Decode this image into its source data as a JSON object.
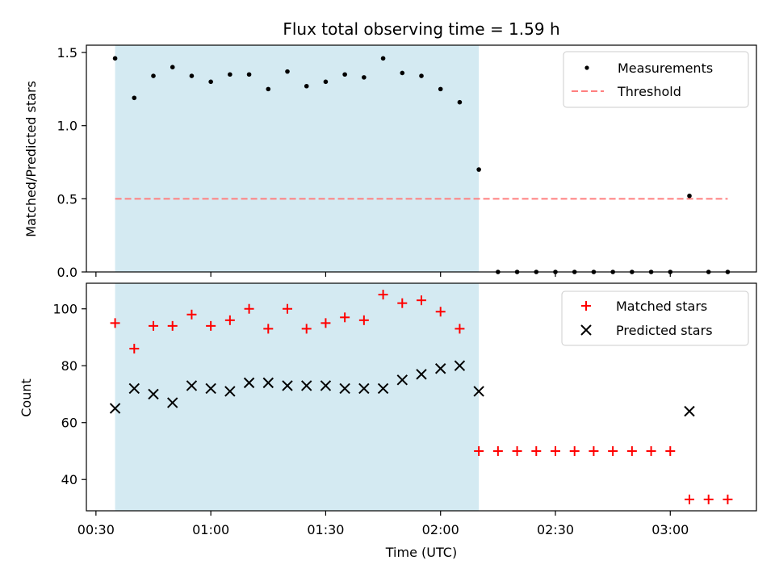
{
  "chart_data": {
    "type": "scatter",
    "title": "Flux total observing time = 1.59 h",
    "xlabel": "Time (UTC)",
    "x_ticks": [
      "00:30",
      "01:00",
      "01:30",
      "02:00",
      "02:30",
      "03:00"
    ],
    "x_tick_minutes": [
      30,
      60,
      90,
      120,
      150,
      180
    ],
    "xlim_minutes": [
      27.5,
      202.5
    ],
    "x_minutes": [
      35,
      40,
      45,
      50,
      55,
      60,
      65,
      70,
      75,
      80,
      85,
      90,
      95,
      100,
      105,
      110,
      115,
      120,
      125,
      130,
      135,
      140,
      145,
      150,
      155,
      160,
      165,
      170,
      175,
      180,
      185,
      190,
      195
    ],
    "shaded_region_minutes": [
      35,
      130
    ],
    "shade_color": "#add8e6",
    "top_panel": {
      "ylabel": "Matched/Predicted stars",
      "ylim": [
        0,
        1.55
      ],
      "y_ticks": [
        "0.0",
        "0.5",
        "1.0",
        "1.5"
      ],
      "y_tick_values": [
        0,
        0.5,
        1.0,
        1.5
      ],
      "series": [
        {
          "name": "Measurements",
          "marker": "dot",
          "color": "#000000",
          "values": [
            1.46,
            1.19,
            1.34,
            1.4,
            1.34,
            1.3,
            1.35,
            1.35,
            1.25,
            1.37,
            1.27,
            1.3,
            1.35,
            1.33,
            1.46,
            1.36,
            1.34,
            1.25,
            1.16,
            0.7,
            0,
            0,
            0,
            0,
            0,
            0,
            0,
            0,
            0,
            0,
            0.52,
            0,
            0
          ]
        }
      ],
      "threshold": {
        "name": "Threshold",
        "value": 0.5,
        "x_range_minutes": [
          35,
          195
        ],
        "color": "#ff7f7f"
      }
    },
    "bottom_panel": {
      "ylabel": "Count",
      "ylim": [
        29,
        109
      ],
      "y_ticks": [
        "40",
        "60",
        "80",
        "100"
      ],
      "y_tick_values": [
        40,
        60,
        80,
        100
      ],
      "series": [
        {
          "name": "Matched stars",
          "marker": "plus",
          "color": "#ff0000",
          "values": [
            95,
            86,
            94,
            94,
            98,
            94,
            96,
            100,
            93,
            100,
            93,
            95,
            97,
            96,
            105,
            102,
            103,
            99,
            93,
            50,
            50,
            50,
            50,
            50,
            50,
            50,
            50,
            50,
            50,
            50,
            33,
            33,
            33
          ]
        },
        {
          "name": "Predicted stars",
          "marker": "x",
          "color": "#000000",
          "values": [
            65,
            72,
            70,
            67,
            73,
            72,
            71,
            74,
            74,
            73,
            73,
            73,
            72,
            72,
            72,
            75,
            77,
            79,
            80,
            71,
            null,
            null,
            null,
            null,
            null,
            null,
            null,
            null,
            null,
            null,
            64,
            null,
            null
          ]
        }
      ]
    },
    "legend_placement": "top-right"
  }
}
